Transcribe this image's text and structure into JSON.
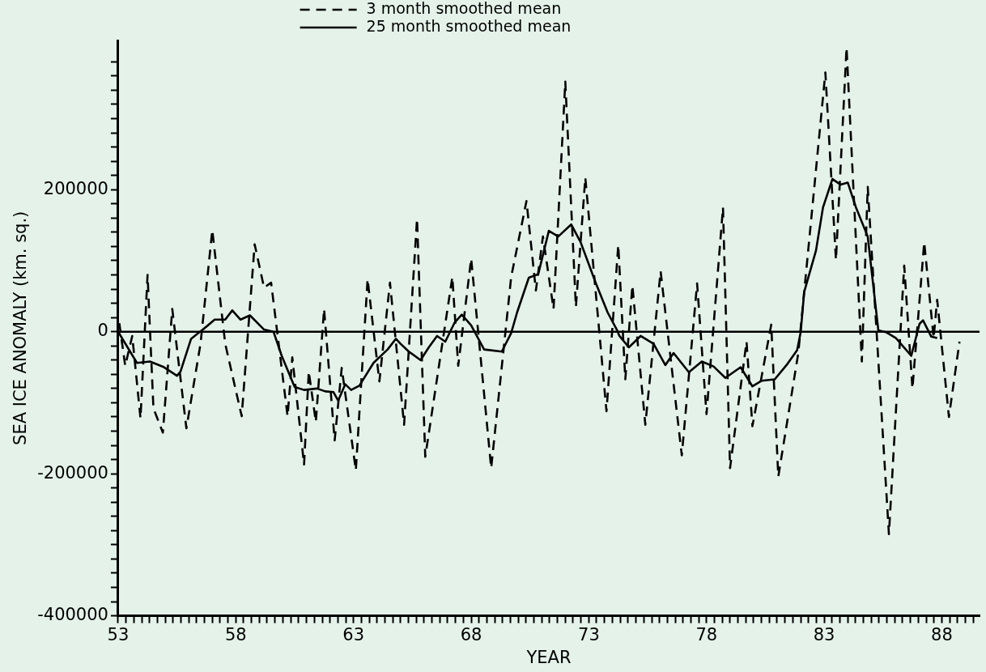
{
  "chart_data": {
    "type": "line",
    "xlabel": "YEAR",
    "ylabel": "SEA ICE ANOMALY (km. sq.)",
    "xlim": [
      53,
      89.6
    ],
    "ylim": [
      -400000,
      410000
    ],
    "xticks": [
      53,
      {
        "value": 53.33,
        "label": null
      },
      {
        "value": 53.67,
        "label": null
      },
      {
        "value": 54,
        "label": null
      },
      {
        "value": 54.33,
        "label": null
      },
      {
        "value": 54.67,
        "label": null
      },
      {
        "value": 55,
        "label": null
      },
      {
        "value": 55.33,
        "label": null
      },
      {
        "value": 55.67,
        "label": null
      },
      {
        "value": 56,
        "label": null
      },
      {
        "value": 56.33,
        "label": null
      },
      {
        "value": 56.67,
        "label": null
      },
      {
        "value": 57,
        "label": null
      },
      {
        "value": 57.33,
        "label": null
      },
      {
        "value": 57.67,
        "label": null
      },
      58,
      {
        "value": 58.33,
        "label": null
      },
      {
        "value": 58.67,
        "label": null
      },
      {
        "value": 59,
        "label": null
      },
      {
        "value": 59.33,
        "label": null
      },
      {
        "value": 59.67,
        "label": null
      },
      {
        "value": 60,
        "label": null
      },
      {
        "value": 60.33,
        "label": null
      },
      {
        "value": 60.67,
        "label": null
      },
      {
        "value": 61,
        "label": null
      },
      {
        "value": 61.33,
        "label": null
      },
      {
        "value": 61.67,
        "label": null
      },
      {
        "value": 62,
        "label": null
      },
      {
        "value": 62.33,
        "label": null
      },
      {
        "value": 62.67,
        "label": null
      },
      63,
      {
        "value": 63.33,
        "label": null
      },
      {
        "value": 63.67,
        "label": null
      },
      {
        "value": 64,
        "label": null
      },
      {
        "value": 64.33,
        "label": null
      },
      {
        "value": 64.67,
        "label": null
      },
      {
        "value": 65,
        "label": null
      },
      {
        "value": 65.33,
        "label": null
      },
      {
        "value": 65.67,
        "label": null
      },
      {
        "value": 66,
        "label": null
      },
      {
        "value": 66.33,
        "label": null
      },
      {
        "value": 66.67,
        "label": null
      },
      {
        "value": 67,
        "label": null
      },
      {
        "value": 67.33,
        "label": null
      },
      {
        "value": 67.67,
        "label": null
      },
      68,
      {
        "value": 68.33,
        "label": null
      },
      {
        "value": 68.67,
        "label": null
      },
      {
        "value": 69,
        "label": null
      },
      {
        "value": 69.33,
        "label": null
      },
      {
        "value": 69.67,
        "label": null
      },
      {
        "value": 70,
        "label": null
      },
      {
        "value": 70.33,
        "label": null
      },
      {
        "value": 70.67,
        "label": null
      },
      {
        "value": 71,
        "label": null
      },
      {
        "value": 71.33,
        "label": null
      },
      {
        "value": 71.67,
        "label": null
      },
      {
        "value": 72,
        "label": null
      },
      {
        "value": 72.33,
        "label": null
      },
      {
        "value": 72.67,
        "label": null
      },
      73,
      {
        "value": 73.33,
        "label": null
      },
      {
        "value": 73.67,
        "label": null
      },
      {
        "value": 74,
        "label": null
      },
      {
        "value": 74.33,
        "label": null
      },
      {
        "value": 74.67,
        "label": null
      },
      {
        "value": 75,
        "label": null
      },
      {
        "value": 75.33,
        "label": null
      },
      {
        "value": 75.67,
        "label": null
      },
      {
        "value": 76,
        "label": null
      },
      {
        "value": 76.33,
        "label": null
      },
      {
        "value": 76.67,
        "label": null
      },
      {
        "value": 77,
        "label": null
      },
      {
        "value": 77.33,
        "label": null
      },
      {
        "value": 77.67,
        "label": null
      },
      78,
      {
        "value": 78.33,
        "label": null
      },
      {
        "value": 78.67,
        "label": null
      },
      {
        "value": 79,
        "label": null
      },
      {
        "value": 79.33,
        "label": null
      },
      {
        "value": 79.67,
        "label": null
      },
      {
        "value": 80,
        "label": null
      },
      {
        "value": 80.33,
        "label": null
      },
      {
        "value": 80.67,
        "label": null
      },
      {
        "value": 81,
        "label": null
      },
      {
        "value": 81.33,
        "label": null
      },
      {
        "value": 81.67,
        "label": null
      },
      {
        "value": 82,
        "label": null
      },
      {
        "value": 82.33,
        "label": null
      },
      {
        "value": 82.67,
        "label": null
      },
      83,
      {
        "value": 83.33,
        "label": null
      },
      {
        "value": 83.67,
        "label": null
      },
      {
        "value": 84,
        "label": null
      },
      {
        "value": 84.33,
        "label": null
      },
      {
        "value": 84.67,
        "label": null
      },
      {
        "value": 85,
        "label": null
      },
      {
        "value": 85.33,
        "label": null
      },
      {
        "value": 85.67,
        "label": null
      },
      {
        "value": 86,
        "label": null
      },
      {
        "value": 86.33,
        "label": null
      },
      {
        "value": 86.67,
        "label": null
      },
      {
        "value": 87,
        "label": null
      },
      {
        "value": 87.33,
        "label": null
      },
      {
        "value": 87.67,
        "label": null
      },
      88,
      {
        "value": 88.33,
        "label": null
      },
      {
        "value": 88.67,
        "label": null
      },
      {
        "value": 89,
        "label": null
      },
      {
        "value": 89.33,
        "label": null
      }
    ],
    "yticks": [
      -400000,
      {
        "value": -380000,
        "label": null
      },
      {
        "value": -360000,
        "label": null
      },
      {
        "value": -340000,
        "label": null
      },
      {
        "value": -320000,
        "label": null
      },
      {
        "value": -300000,
        "label": null
      },
      {
        "value": -280000,
        "label": null
      },
      {
        "value": -260000,
        "label": null
      },
      {
        "value": -240000,
        "label": null
      },
      {
        "value": -220000,
        "label": null
      },
      -200000,
      {
        "value": -180000,
        "label": null
      },
      {
        "value": -160000,
        "label": null
      },
      {
        "value": -140000,
        "label": null
      },
      {
        "value": -120000,
        "label": null
      },
      {
        "value": -100000,
        "label": null
      },
      {
        "value": -80000,
        "label": null
      },
      {
        "value": -60000,
        "label": null
      },
      {
        "value": -40000,
        "label": null
      },
      {
        "value": -20000,
        "label": null
      },
      0,
      {
        "value": 20000,
        "label": null
      },
      {
        "value": 40000,
        "label": null
      },
      {
        "value": 60000,
        "label": null
      },
      {
        "value": 80000,
        "label": null
      },
      {
        "value": 100000,
        "label": null
      },
      {
        "value": 120000,
        "label": null
      },
      {
        "value": 140000,
        "label": null
      },
      {
        "value": 160000,
        "label": null
      },
      {
        "value": 180000,
        "label": null
      },
      200000,
      {
        "value": 220000,
        "label": null
      },
      {
        "value": 240000,
        "label": null
      },
      {
        "value": 260000,
        "label": null
      },
      {
        "value": 280000,
        "label": null
      },
      {
        "value": 300000,
        "label": null
      },
      {
        "value": 320000,
        "label": null
      },
      {
        "value": 340000,
        "label": null
      },
      {
        "value": 360000,
        "label": null
      },
      {
        "value": 380000,
        "label": null
      }
    ],
    "grid": false,
    "legend": "top",
    "marker": "none",
    "ref_lines": [
      {
        "axis": "y",
        "value": 0,
        "color": "#000000",
        "line_style": "solid"
      }
    ],
    "series": [
      {
        "name": "3 month smoothed mean",
        "color": "#000000",
        "line_style": "dashed",
        "x": [
          53.05,
          53.3,
          53.6,
          53.95,
          54.25,
          54.5,
          54.9,
          55.3,
          55.9,
          56.5,
          57.0,
          57.55,
          58.25,
          58.8,
          59.2,
          59.5,
          60.2,
          60.4,
          60.9,
          61.1,
          61.4,
          61.75,
          62.2,
          62.5,
          63.1,
          63.6,
          64.1,
          64.55,
          65.15,
          65.7,
          66.05,
          67.2,
          67.45,
          68.0,
          68.85,
          69.7,
          70.35,
          70.75,
          71.05,
          71.5,
          72.0,
          72.45,
          72.85,
          73.75,
          74.25,
          74.55,
          74.85,
          75.4,
          76.05,
          76.95,
          77.6,
          78.0,
          78.7,
          79.0,
          79.7,
          79.95,
          80.75,
          81.05,
          81.9,
          83.05,
          83.5,
          83.95,
          84.6,
          84.85,
          85.75,
          86.4,
          86.75,
          87.25,
          87.65,
          87.8,
          88.3,
          88.75
        ],
        "values": [
          12000,
          -48000,
          -6000,
          -122000,
          80000,
          -108000,
          -142000,
          32000,
          -136000,
          -17000,
          143000,
          -17000,
          -119000,
          123000,
          62000,
          69000,
          -119000,
          -36000,
          -187000,
          -56000,
          -127000,
          32000,
          -153000,
          -51000,
          -195000,
          74000,
          -70000,
          69000,
          -131000,
          159000,
          -176000,
          77000,
          -48000,
          103000,
          -192000,
          77000,
          184000,
          58000,
          134000,
          32000,
          352000,
          35000,
          217000,
          -112000,
          122000,
          -67000,
          65000,
          -131000,
          85000,
          -174000,
          68000,
          -116000,
          175000,
          -192000,
          -14000,
          -133000,
          10000,
          -204000,
          -30000,
          365000,
          101000,
          400000,
          -42000,
          204000,
          -285000,
          93000,
          -80000,
          126000,
          -9000,
          45000,
          -120000,
          -14000
        ]
      },
      {
        "name": "25 month smoothed mean",
        "color": "#000000",
        "line_style": "solid",
        "x": [
          53,
          53.8,
          54.35,
          54.95,
          55.5,
          55.65,
          56.1,
          56.4,
          56.6,
          57.1,
          57.55,
          57.85,
          58.2,
          58.6,
          59.2,
          59.6,
          59.95,
          60.5,
          60.9,
          61.45,
          61.8,
          62.15,
          62.35,
          62.65,
          62.9,
          63.25,
          63.85,
          64.45,
          64.8,
          65.0,
          65.35,
          65.85,
          66.2,
          66.55,
          66.9,
          67.3,
          67.6,
          68.0,
          68.55,
          69.3,
          69.7,
          69.95,
          70.45,
          70.85,
          71.3,
          71.7,
          72.25,
          72.65,
          73.3,
          73.8,
          74.2,
          74.3,
          74.7,
          75.2,
          75.75,
          76.25,
          76.6,
          77.25,
          77.8,
          78.3,
          78.8,
          79.45,
          79.95,
          80.35,
          80.9,
          81.4,
          81.85,
          82.0,
          82.15,
          82.65,
          82.95,
          83.35,
          83.7,
          84.0,
          84.35,
          84.85,
          85.3,
          85.65,
          86.05,
          86.7,
          87.05,
          87.2,
          87.55,
          87.8
        ],
        "values": [
          0,
          -44000,
          -42000,
          -50000,
          -62000,
          -56000,
          -10000,
          -2000,
          3000,
          17000,
          17000,
          30000,
          17000,
          23000,
          3000,
          0,
          -34000,
          -78000,
          -82000,
          -80000,
          -84000,
          -85000,
          -97000,
          -74000,
          -82000,
          -76000,
          -44000,
          -25000,
          -10000,
          -17000,
          -28000,
          -40000,
          -22000,
          -6000,
          -14000,
          13000,
          24000,
          9000,
          -25000,
          -28000,
          -2000,
          27000,
          76000,
          81000,
          142000,
          134000,
          151000,
          126000,
          68000,
          27000,
          2000,
          -6000,
          -22000,
          -6000,
          -17000,
          -47000,
          -30000,
          -57000,
          -42000,
          -49000,
          -65000,
          -50000,
          -77000,
          -69000,
          -67000,
          -47000,
          -26000,
          -1000,
          56000,
          114000,
          175000,
          215000,
          207000,
          210000,
          175000,
          134000,
          2000,
          -1000,
          -9000,
          -34000,
          11000,
          16000,
          -7000,
          -9000
        ]
      }
    ]
  }
}
